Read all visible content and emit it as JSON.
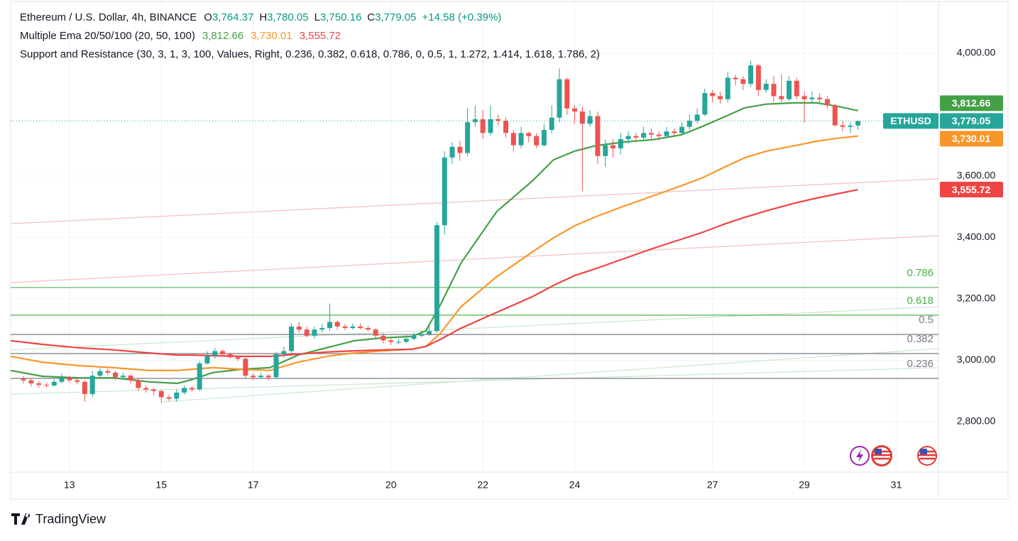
{
  "header": {
    "title": "Ethereum / U.S. Dollar, 4h, BINANCE",
    "ohlc": [
      {
        "key": "O",
        "value": "3,764.37"
      },
      {
        "key": "H",
        "value": "3,780.05"
      },
      {
        "key": "L",
        "value": "3,750.16"
      },
      {
        "key": "C",
        "value": "3,779.05"
      }
    ],
    "change": "+14.58 (+0.39%)",
    "ema_legend": "Multiple Ema 20/50/100 (20, 50, 100)",
    "sr_legend": "Support and Resistance (30, 3, 1, 3, 100, Values, Right, 0.236, 0.382, 0.618, 0.786, 0, 0.5, 1, 1.272, 1.414, 1.618, 1.786, 2)"
  },
  "chart_data": {
    "type": "candlestick",
    "symbol": "ETHUSD",
    "up_color": "#26a69a",
    "down_color": "#ef5350",
    "xlim": [
      11.72,
      31.92
    ],
    "xticks": [
      13,
      15,
      17,
      20,
      22,
      24,
      27,
      29,
      31
    ],
    "ylim": [
      2636,
      4166
    ],
    "yticks": [
      {
        "value": 4000,
        "label": "4,000.00"
      },
      {
        "value": 3600,
        "label": "3,600.00"
      },
      {
        "value": 3400,
        "label": "3,400.00"
      },
      {
        "value": 3200,
        "label": "3,200.00"
      },
      {
        "value": 3000,
        "label": "3,000.00"
      },
      {
        "value": 2800,
        "label": "2,800.00"
      }
    ],
    "grid": true,
    "x": [
      12,
      12.167,
      12.333,
      12.5,
      12.667,
      12.833,
      13,
      13.167,
      13.333,
      13.5,
      13.667,
      13.833,
      14,
      14.167,
      14.333,
      14.5,
      14.667,
      14.833,
      15,
      15.167,
      15.333,
      15.5,
      15.667,
      15.833,
      16,
      16.167,
      16.333,
      16.5,
      16.667,
      16.833,
      17,
      17.167,
      17.333,
      17.5,
      17.667,
      17.833,
      18,
      18.167,
      18.333,
      18.5,
      18.667,
      18.833,
      19,
      19.167,
      19.333,
      19.5,
      19.667,
      19.833,
      20,
      20.167,
      20.333,
      20.5,
      20.667,
      20.833,
      21,
      21.167,
      21.333,
      21.5,
      21.667,
      21.833,
      22,
      22.167,
      22.333,
      22.5,
      22.667,
      22.833,
      23,
      23.167,
      23.333,
      23.5,
      23.667,
      23.833,
      24,
      24.167,
      24.333,
      24.5,
      24.667,
      24.833,
      25,
      25.167,
      25.333,
      25.5,
      25.667,
      25.833,
      26,
      26.167,
      26.333,
      26.5,
      26.667,
      26.833,
      27,
      27.167,
      27.333,
      27.5,
      27.667,
      27.833,
      28,
      28.167,
      28.333,
      28.5,
      28.667,
      28.833,
      29,
      29.167,
      29.333,
      29.5,
      29.667,
      29.833,
      30,
      30.167
    ],
    "open": [
      2940,
      2935,
      2925,
      2920,
      2918,
      2930,
      2945,
      2935,
      2930,
      2890,
      2950,
      2965,
      2960,
      2945,
      2950,
      2935,
      2910,
      2905,
      2900,
      2880,
      2875,
      2895,
      2910,
      2905,
      2990,
      3015,
      3030,
      3020,
      3010,
      3005,
      2950,
      2945,
      2950,
      2945,
      3020,
      3030,
      3110,
      3100,
      3080,
      3100,
      3105,
      3125,
      3110,
      3105,
      3110,
      3105,
      3100,
      3080,
      3065,
      3060,
      3060,
      3070,
      3080,
      3085,
      3095,
      3440,
      3660,
      3695,
      3675,
      3775,
      3785,
      3740,
      3785,
      3780,
      3740,
      3700,
      3740,
      3730,
      3700,
      3750,
      3790,
      3915,
      3820,
      3810,
      3770,
      3795,
      3665,
      3700,
      3690,
      3720,
      3730,
      3725,
      3740,
      3735,
      3730,
      3745,
      3740,
      3760,
      3780,
      3800,
      3870,
      3860,
      3850,
      3920,
      3915,
      3900,
      3960,
      3880,
      3900,
      3860,
      3850,
      3910,
      3860,
      3850,
      3855,
      3850,
      3830,
      3765,
      3760,
      3764.37
    ],
    "high": [
      2948,
      2942,
      2932,
      2926,
      2938,
      2958,
      2950,
      2942,
      2935,
      2965,
      2975,
      2972,
      2965,
      2960,
      2955,
      2940,
      2918,
      2910,
      2905,
      2888,
      2905,
      2918,
      2915,
      2998,
      3030,
      3040,
      3035,
      3025,
      3015,
      3010,
      2958,
      2960,
      2955,
      3028,
      3045,
      3120,
      3125,
      3110,
      3110,
      3118,
      3185,
      3130,
      3118,
      3120,
      3120,
      3112,
      3105,
      3088,
      3072,
      3070,
      3082,
      3090,
      3095,
      3110,
      3450,
      3680,
      3710,
      3715,
      3820,
      3830,
      3815,
      3830,
      3800,
      3790,
      3750,
      3760,
      3745,
      3740,
      3770,
      3830,
      3950,
      3920,
      3830,
      3825,
      3815,
      3810,
      3720,
      3720,
      3740,
      3745,
      3740,
      3760,
      3755,
      3745,
      3760,
      3755,
      3775,
      3800,
      3820,
      3885,
      3880,
      3875,
      3940,
      3930,
      3925,
      3975,
      3965,
      3915,
      3925,
      3930,
      3925,
      3920,
      3875,
      3875,
      3870,
      3860,
      3835,
      3780,
      3775,
      3780.05
    ],
    "low": [
      2925,
      2915,
      2910,
      2912,
      2915,
      2925,
      2928,
      2922,
      2865,
      2880,
      2945,
      2950,
      2935,
      2938,
      2925,
      2900,
      2895,
      2885,
      2860,
      2868,
      2865,
      2888,
      2898,
      2900,
      2985,
      3005,
      3012,
      3005,
      2998,
      2940,
      2935,
      2940,
      2935,
      2940,
      3010,
      3025,
      3090,
      3075,
      3070,
      3090,
      3095,
      3100,
      3098,
      3100,
      3100,
      3095,
      3070,
      3055,
      3050,
      3052,
      3055,
      3065,
      3075,
      3080,
      3090,
      3410,
      3640,
      3650,
      3665,
      3760,
      3720,
      3730,
      3765,
      3725,
      3680,
      3690,
      3710,
      3690,
      3695,
      3740,
      3775,
      3800,
      3770,
      3550,
      3760,
      3640,
      3630,
      3660,
      3670,
      3705,
      3710,
      3715,
      3720,
      3715,
      3725,
      3730,
      3735,
      3750,
      3770,
      3795,
      3840,
      3835,
      3840,
      3895,
      3880,
      3890,
      3860,
      3870,
      3840,
      3840,
      3845,
      3850,
      3775,
      3840,
      3835,
      3820,
      3760,
      3745,
      3740,
      3750.16
    ],
    "close": [
      2935,
      2925,
      2920,
      2918,
      2930,
      2945,
      2935,
      2930,
      2890,
      2950,
      2965,
      2960,
      2945,
      2950,
      2935,
      2910,
      2905,
      2900,
      2880,
      2875,
      2895,
      2910,
      2905,
      2990,
      3015,
      3030,
      3020,
      3010,
      3005,
      2950,
      2945,
      2950,
      2945,
      3020,
      3030,
      3110,
      3100,
      3080,
      3100,
      3105,
      3125,
      3110,
      3105,
      3110,
      3105,
      3100,
      3080,
      3065,
      3060,
      3060,
      3070,
      3080,
      3085,
      3095,
      3440,
      3660,
      3695,
      3675,
      3775,
      3785,
      3740,
      3785,
      3780,
      3740,
      3700,
      3740,
      3730,
      3700,
      3750,
      3790,
      3915,
      3820,
      3810,
      3770,
      3795,
      3665,
      3700,
      3690,
      3720,
      3730,
      3725,
      3740,
      3735,
      3730,
      3745,
      3740,
      3760,
      3780,
      3800,
      3870,
      3860,
      3850,
      3920,
      3915,
      3900,
      3960,
      3880,
      3900,
      3860,
      3850,
      3910,
      3860,
      3850,
      3855,
      3850,
      3830,
      3765,
      3760,
      3764.37,
      3779.05
    ],
    "overlays": {
      "x": [
        11.72,
        12.41,
        13.19,
        13.96,
        14.73,
        15.35,
        15.66,
        16.12,
        16.74,
        17.36,
        17.98,
        18.6,
        19.21,
        19.83,
        20.45,
        20.76,
        21.07,
        21.53,
        22.3,
        23.08,
        23.54,
        24,
        24.47,
        25.09,
        25.7,
        26.32,
        26.79,
        27.25,
        27.71,
        28.18,
        28.8,
        29.26,
        29.72,
        30.167
      ],
      "series": [
        {
          "color": "#43a047",
          "value_label": "3,812.66",
          "values": [
            2967,
            2948,
            2943,
            2943,
            2930,
            2925,
            2937,
            2960,
            2971,
            2976,
            3017,
            3041,
            3064,
            3073,
            3078,
            3096,
            3179,
            3318,
            3484,
            3584,
            3653,
            3681,
            3699,
            3711,
            3718,
            3734,
            3762,
            3792,
            3822,
            3834,
            3838,
            3838,
            3827,
            3812.66
          ]
        },
        {
          "color": "#f8962a",
          "value_label": "3,730.01",
          "values": [
            3013,
            2994,
            2983,
            2976,
            2967,
            2967,
            2971,
            2976,
            2971,
            2967,
            2994,
            3013,
            3024,
            3031,
            3036,
            3045,
            3087,
            3175,
            3272,
            3353,
            3399,
            3438,
            3468,
            3503,
            3535,
            3568,
            3595,
            3628,
            3660,
            3681,
            3699,
            3713,
            3723,
            3730.01
          ]
        },
        {
          "color": "#ef4444",
          "value_label": "3,555.72",
          "values": [
            3064,
            3052,
            3041,
            3034,
            3024,
            3017,
            3017,
            3015,
            3013,
            3013,
            3020,
            3027,
            3031,
            3034,
            3036,
            3045,
            3068,
            3105,
            3156,
            3207,
            3244,
            3276,
            3299,
            3332,
            3364,
            3394,
            3417,
            3443,
            3466,
            3487,
            3512,
            3528,
            3542,
            3555.72
          ]
        }
      ]
    },
    "levels": [
      {
        "label": "0.786",
        "price": 3237,
        "color": "#4caf50"
      },
      {
        "label": "0.618",
        "price": 3147,
        "color": "#4caf50"
      },
      {
        "label": "0.5",
        "price": 3084,
        "color": "#787b86"
      },
      {
        "label": "0.382",
        "price": 3022,
        "color": "#787b86"
      },
      {
        "label": "0.236",
        "price": 2941,
        "color": "#787b86"
      }
    ],
    "trendlines": [
      {
        "x": [
          11.72,
          31.92
        ],
        "values": [
          3445,
          3591
        ],
        "color": "#f7c1c1"
      },
      {
        "x": [
          11.72,
          31.92
        ],
        "values": [
          3253,
          3406
        ],
        "color": "#f7c1c1"
      },
      {
        "x": [
          11.72,
          31.92
        ],
        "values": [
          3034,
          3175
        ],
        "color": "#cfe8cf"
      },
      {
        "x": [
          11.72,
          31.92
        ],
        "values": [
          2890,
          2976
        ],
        "color": "#cfe8cf"
      },
      {
        "x": [
          15.04,
          31.92
        ],
        "values": [
          2865,
          3038
        ],
        "color": "#cfe8cf"
      }
    ]
  },
  "footer": {
    "brand": "TradingView"
  }
}
